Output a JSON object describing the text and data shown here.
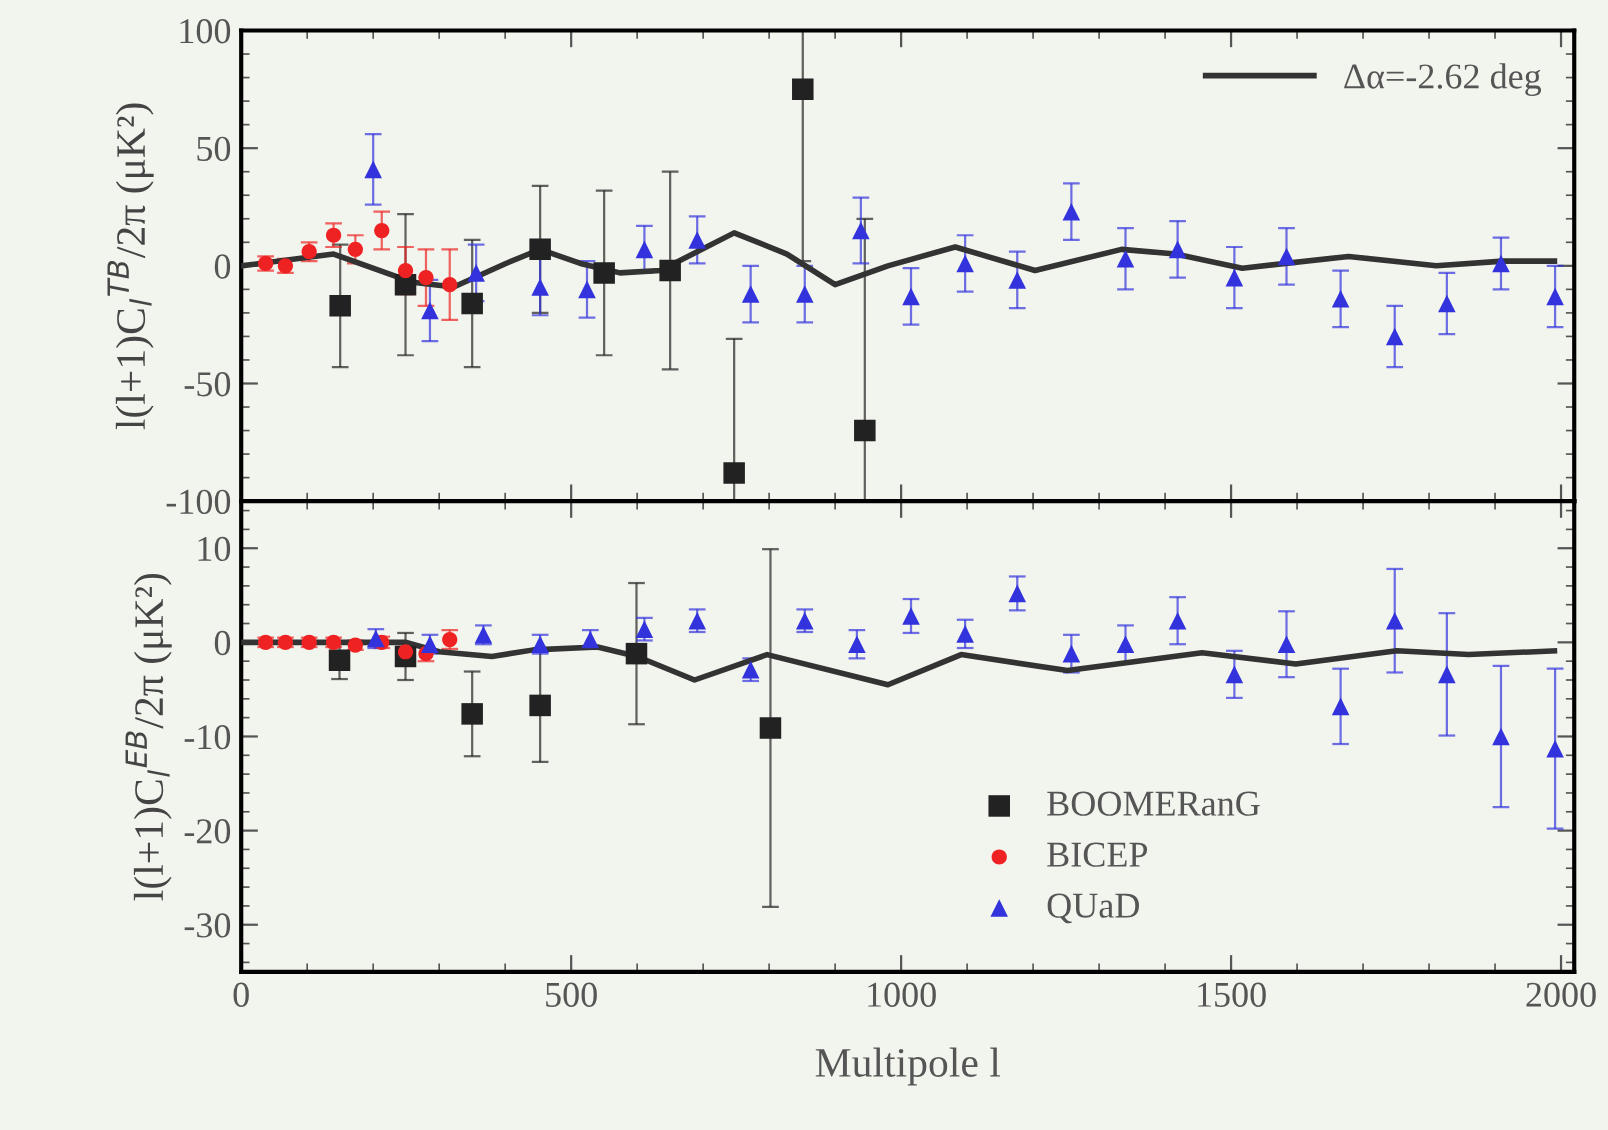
{
  "chart_data": [
    {
      "type": "scatter",
      "ylabel": "l(l+1)C$_{l}$$^{TB}$/2π (μK²)",
      "xlim": [
        0,
        2020
      ],
      "xticks": [
        0,
        500,
        1000,
        1500,
        2000
      ],
      "ylim": [
        -100,
        100
      ],
      "yticks": [
        -100,
        -50,
        0,
        50,
        100
      ],
      "tick_labels": "y",
      "grid": false,
      "legend": "top right",
      "series": [
        {
          "color": "#222222",
          "marker": "square",
          "x": [
            150,
            249,
            350,
            453,
            550,
            650,
            747,
            851,
            945
          ],
          "values": [
            -17,
            -8,
            -16,
            7,
            -3,
            -2,
            -88,
            75,
            -70
          ],
          "errors": [
            26,
            30,
            27,
            27,
            35,
            42,
            [
              -100,
              -31
            ],
            [
              2,
              100
            ],
            [
              -100,
              20
            ]
          ]
        },
        {
          "color": "#ee2222",
          "marker": "circle",
          "x": [
            37,
            67,
            103,
            140,
            173,
            213,
            249,
            280,
            316
          ],
          "values": [
            1,
            0,
            6,
            13,
            7,
            15,
            -2,
            -5,
            -8
          ],
          "errors": [
            3,
            3,
            4,
            5,
            6,
            8,
            10,
            12,
            15
          ]
        },
        {
          "color": "#3333dd",
          "marker": "triangle",
          "x": [
            200,
            286,
            356,
            453,
            524,
            611,
            691,
            772,
            854,
            939,
            1015,
            1097,
            1176,
            1258,
            1340,
            1419,
            1505,
            1584,
            1666,
            1748,
            1827,
            1909,
            1991
          ],
          "values": [
            41,
            -19,
            -3,
            -9,
            -10,
            7,
            11,
            -12,
            -12,
            15,
            -13,
            1,
            -6,
            23,
            3,
            7,
            -5,
            4,
            -14,
            -30,
            -16,
            1,
            -13
          ],
          "errors": [
            15,
            13,
            12,
            12,
            12,
            10,
            10,
            12,
            12,
            14,
            12,
            12,
            12,
            12,
            13,
            12,
            13,
            12,
            12,
            13,
            13,
            11,
            13
          ]
        },
        {
          "type": "line",
          "name": "Δα=-2.62 deg",
          "color": "#333333",
          "line_style": "solid",
          "x": [
            0,
            140,
            260,
            322,
            401,
            453,
            514,
            574,
            635,
            747,
            827,
            900,
            980,
            1082,
            1203,
            1334,
            1416,
            1517,
            1678,
            1811,
            1912,
            1990
          ],
          "values": [
            0,
            5,
            -7,
            -9,
            1,
            7,
            1,
            -3,
            -2,
            14,
            5,
            -8,
            0,
            8,
            -2,
            7,
            5,
            -1,
            4,
            0,
            2,
            2
          ]
        }
      ]
    },
    {
      "type": "scatter",
      "ylabel": "l(l+1)C$_{l}$$^{EB}$/2π (μK²)",
      "xlabel": "Multipole l",
      "xlim": [
        0,
        2020
      ],
      "xticks": [
        0,
        500,
        1000,
        1500,
        2000
      ],
      "ylim": [
        -35,
        15
      ],
      "yticks": [
        -30,
        -20,
        -10,
        0,
        10
      ],
      "grid": false,
      "legend": "bottom",
      "series": [
        {
          "name": "BOOMERanG",
          "color": "#222222",
          "marker": "square",
          "x": [
            149,
            249,
            350,
            453,
            599,
            802
          ],
          "values": [
            -1.9,
            -1.5,
            -7.6,
            -6.7,
            -1.2,
            -9.1
          ],
          "errors": [
            2,
            2.5,
            4.5,
            6,
            7.5,
            19
          ]
        },
        {
          "name": "BICEP",
          "color": "#ee2222",
          "marker": "circle",
          "x": [
            37,
            67,
            103,
            140,
            173,
            213,
            249,
            280,
            316
          ],
          "values": [
            0,
            0,
            0,
            0,
            -0.3,
            0,
            -1,
            -1.2,
            0.3
          ],
          "errors": [
            0.5,
            0.5,
            0.5,
            0.5,
            0.5,
            0.6,
            0.8,
            0.8,
            1
          ]
        },
        {
          "name": "QUaD",
          "color": "#3333dd",
          "marker": "triangle",
          "x": [
            204,
            286,
            367,
            453,
            529,
            611,
            691,
            772,
            854,
            933,
            1015,
            1097,
            1176,
            1258,
            1340,
            1419,
            1505,
            1584,
            1666,
            1748,
            1827,
            1909,
            1991
          ],
          "values": [
            0.4,
            -0.2,
            0.8,
            -0.2,
            0.3,
            1.4,
            2.3,
            -2.9,
            2.3,
            -0.2,
            2.8,
            0.9,
            5.2,
            -1.2,
            -0.2,
            2.3,
            -3.4,
            -0.2,
            -6.8,
            2.3,
            -3.4,
            -10,
            -11.3
          ],
          "errors": [
            1,
            1,
            1,
            1,
            1,
            1.2,
            1.2,
            1.2,
            1.2,
            1.5,
            1.8,
            1.5,
            1.8,
            2,
            2,
            2.5,
            2.5,
            3.5,
            4,
            5.5,
            6.5,
            7.5,
            8.5
          ]
        },
        {
          "type": "line",
          "color": "#333333",
          "line_style": "solid",
          "x": [
            0,
            250,
            300,
            380,
            443,
            540,
            600,
            687,
            797,
            980,
            1091,
            1252,
            1456,
            1598,
            1751,
            1860,
            1990
          ],
          "values": [
            0,
            0,
            -1,
            -1.5,
            -0.8,
            -0.5,
            -1.5,
            -4,
            -1.3,
            -4.5,
            -1.3,
            -3,
            -1.1,
            -2.3,
            -0.9,
            -1.3,
            -0.9
          ]
        }
      ]
    }
  ]
}
